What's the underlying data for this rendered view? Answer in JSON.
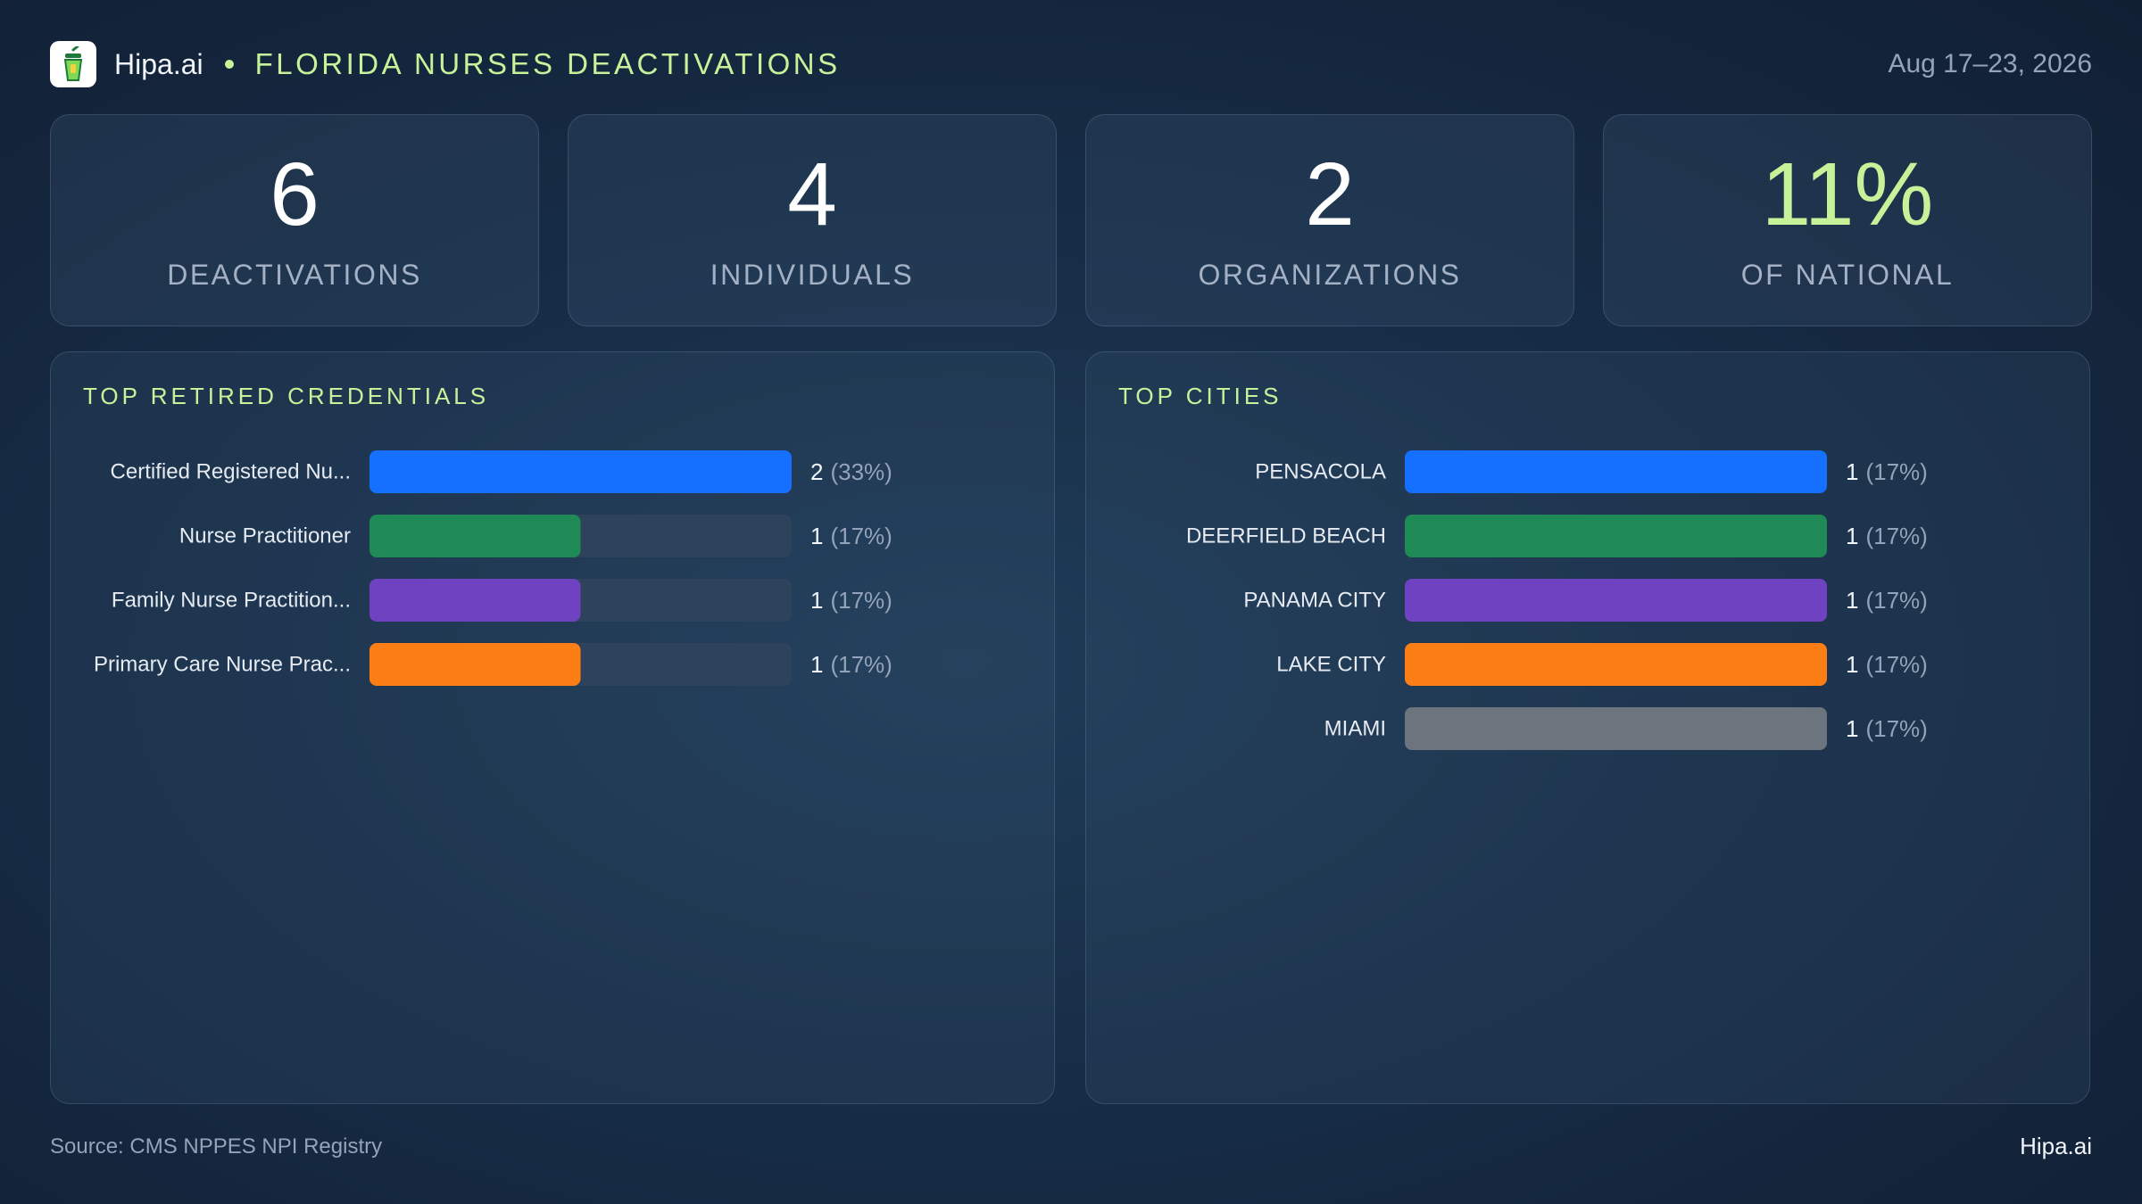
{
  "header": {
    "brand": "Hipa.ai",
    "title": "FLORIDA NURSES DEACTIVATIONS",
    "date_range": "Aug 17–23, 2026"
  },
  "kpis": [
    {
      "value": "6",
      "label": "DEACTIVATIONS"
    },
    {
      "value": "4",
      "label": "INDIVIDUALS"
    },
    {
      "value": "2",
      "label": "ORGANIZATIONS"
    },
    {
      "value": "11%",
      "label": "OF NATIONAL"
    }
  ],
  "chart_data": [
    {
      "type": "bar",
      "orientation": "horizontal",
      "title": "TOP RETIRED CREDENTIALS",
      "categories": [
        "Certified Registered Nu...",
        "Nurse Practitioner",
        "Family Nurse Practition...",
        "Primary Care Nurse Prac..."
      ],
      "values": [
        2,
        1,
        1,
        1
      ],
      "value_labels": [
        "2",
        "1",
        "1",
        "1"
      ],
      "percent_labels": [
        "(33%)",
        "(17%)",
        "(17%)",
        "(17%)"
      ],
      "xlim": [
        0,
        2
      ],
      "colors": [
        "#1570ff",
        "#1f8a55",
        "#6f42c1",
        "#fd7e14"
      ]
    },
    {
      "type": "bar",
      "orientation": "horizontal",
      "title": "TOP CITIES",
      "categories": [
        "PENSACOLA",
        "DEERFIELD BEACH",
        "PANAMA CITY",
        "LAKE CITY",
        "MIAMI"
      ],
      "values": [
        1,
        1,
        1,
        1,
        1
      ],
      "value_labels": [
        "1",
        "1",
        "1",
        "1",
        "1"
      ],
      "percent_labels": [
        "(17%)",
        "(17%)",
        "(17%)",
        "(17%)",
        "(17%)"
      ],
      "xlim": [
        0,
        1
      ],
      "colors": [
        "#1570ff",
        "#1f8a55",
        "#6f42c1",
        "#fd7e14",
        "#6c757d"
      ]
    }
  ],
  "theme": {
    "accent": "#c8f29a",
    "track": "#2e435b",
    "label_text": "#e6ebf2",
    "muted_text": "#94a3b8"
  },
  "footer": {
    "source": "Source: CMS NPPES NPI Registry",
    "brand": "Hipa.ai"
  }
}
